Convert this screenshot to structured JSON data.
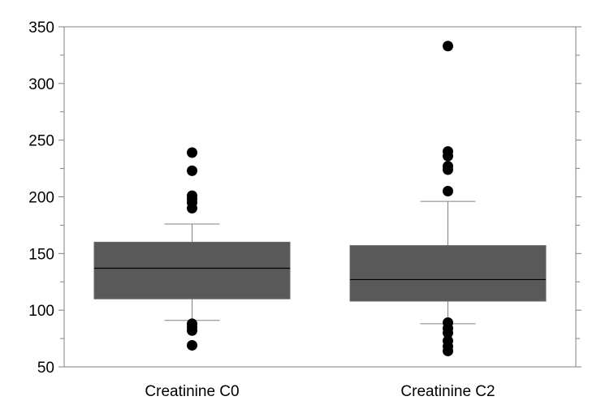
{
  "chart_data": {
    "type": "box",
    "title": "",
    "xlabel": "",
    "ylabel": "",
    "ylim": [
      50,
      350
    ],
    "yticks": [
      50,
      100,
      150,
      200,
      250,
      300,
      350
    ],
    "minor_tick_step": 25,
    "grid": false,
    "categories": [
      "Creatinine C0",
      "Creatinine C2"
    ],
    "series": [
      {
        "name": "Creatinine C0",
        "whisker_low": 91,
        "q1": 110,
        "median": 137,
        "q3": 160,
        "whisker_high": 176,
        "outliers": [
          239,
          223,
          201,
          198,
          195,
          190,
          88,
          85,
          82,
          69
        ]
      },
      {
        "name": "Creatinine C2",
        "whisker_low": 88,
        "q1": 108,
        "median": 127,
        "q3": 157,
        "whisker_high": 196,
        "outliers": [
          333,
          240,
          236,
          227,
          224,
          205,
          89,
          84,
          80,
          73,
          68,
          64
        ]
      }
    ],
    "colors": {
      "box": "#595959",
      "line": "#000000",
      "whisker": "#808080",
      "outlier": "#000000",
      "axis": "#808080"
    }
  }
}
